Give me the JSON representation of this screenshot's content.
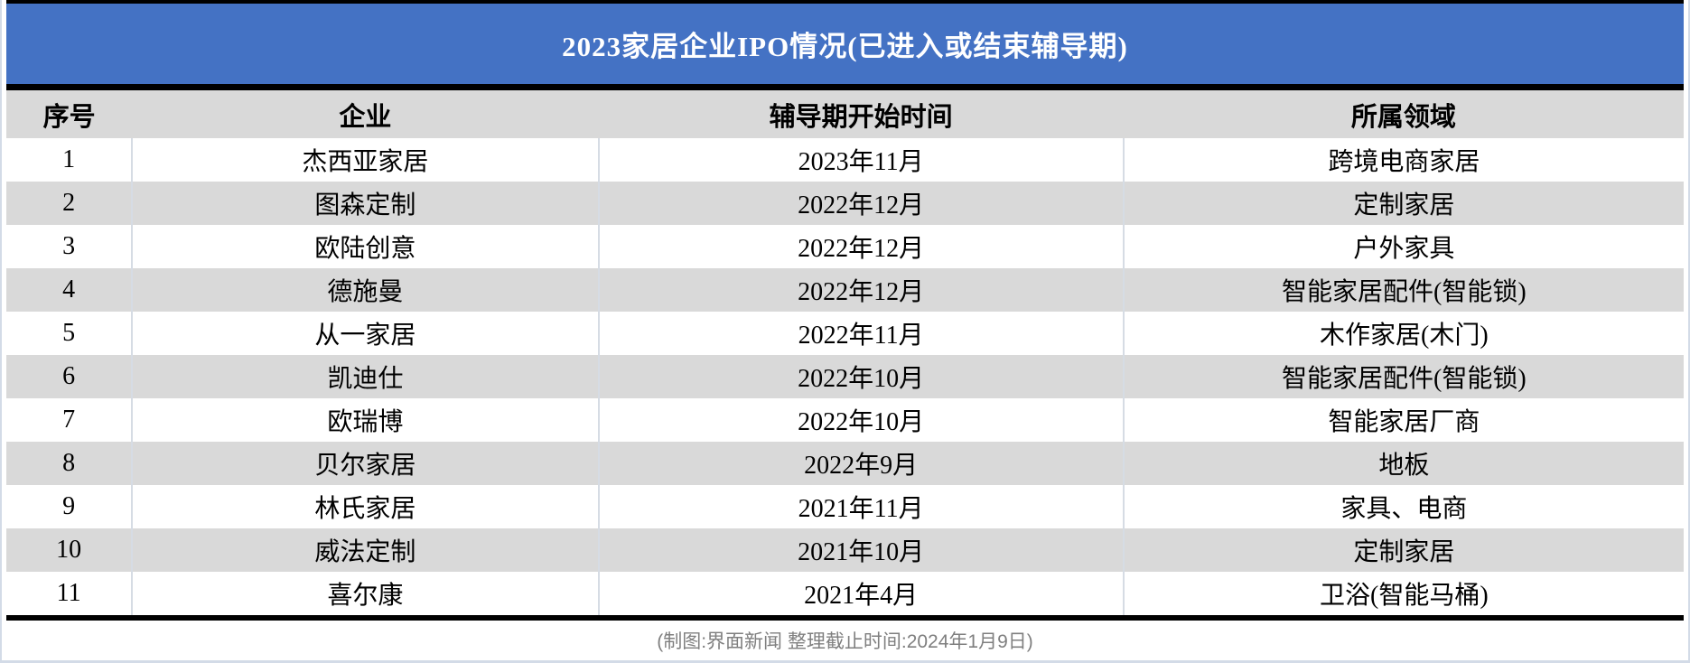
{
  "chart_data": {
    "type": "table",
    "title": "2023家居企业IPO情况(已进入或结束辅导期)",
    "columns": [
      "序号",
      "企业",
      "辅导期开始时间",
      "所属领域"
    ],
    "rows": [
      [
        "1",
        "杰西亚家居",
        "2023年11月",
        "跨境电商家居"
      ],
      [
        "2",
        "图森定制",
        "2022年12月",
        "定制家居"
      ],
      [
        "3",
        "欧陆创意",
        "2022年12月",
        "户外家具"
      ],
      [
        "4",
        "德施曼",
        "2022年12月",
        "智能家居配件(智能锁)"
      ],
      [
        "5",
        "从一家居",
        "2022年11月",
        "木作家居(木门)"
      ],
      [
        "6",
        "凯迪仕",
        "2022年10月",
        "智能家居配件(智能锁)"
      ],
      [
        "7",
        "欧瑞博",
        "2022年10月",
        "智能家居厂商"
      ],
      [
        "8",
        "贝尔家居",
        "2022年9月",
        "地板"
      ],
      [
        "9",
        "林氏家居",
        "2021年11月",
        "家具、电商"
      ],
      [
        "10",
        "威法定制",
        "2021年10月",
        "定制家居"
      ],
      [
        "11",
        "喜尔康",
        "2021年4月",
        "卫浴(智能马桶)"
      ]
    ],
    "footnote": "(制图:界面新闻  整理截止时间:2024年1月9日)"
  },
  "colors": {
    "title_bg": "#4472C4",
    "title_text": "#FFFFFF",
    "header_bg": "#D9D9D9",
    "row_bg": "#FFFFFF",
    "alt_row_bg": "#D9D9D9",
    "cell_border": "#D6DCE4",
    "heavy_border": "#000000",
    "footer_text": "#7F7F7F",
    "outer_border": "#D3DBE7"
  }
}
